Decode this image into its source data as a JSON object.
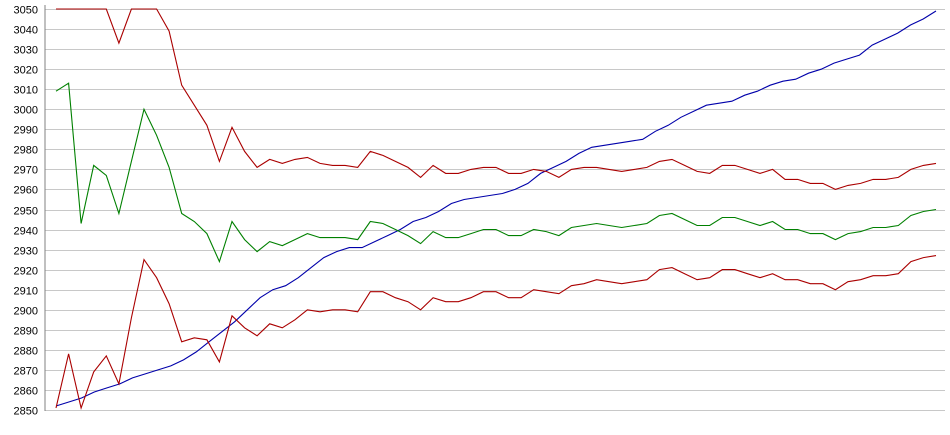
{
  "chart_data": {
    "type": "line",
    "title": "",
    "xlabel": "",
    "ylabel": "",
    "ylim": [
      2850,
      3050
    ],
    "y_ticks": [
      2850,
      2860,
      2870,
      2880,
      2890,
      2900,
      2910,
      2920,
      2930,
      2940,
      2950,
      2960,
      2970,
      2980,
      2990,
      3000,
      3010,
      3020,
      3030,
      3040,
      3050
    ],
    "grid": true,
    "legend": "none",
    "series": [
      {
        "color": "#0000aa",
        "values": [
          2852,
          2854,
          2856,
          2859,
          2861,
          2863,
          2866,
          2868,
          2870,
          2872,
          2875,
          2879,
          2884,
          2889,
          2894,
          2900,
          2906,
          2910,
          2912,
          2916,
          2921,
          2926,
          2929,
          2931,
          2931,
          2934,
          2937,
          2940,
          2944,
          2946,
          2949,
          2953,
          2955,
          2956,
          2957,
          2958,
          2960,
          2963,
          2968,
          2971,
          2974,
          2978,
          2981,
          2982,
          2983,
          2984,
          2985,
          2989,
          2992,
          2996,
          2999,
          3002,
          3003,
          3004,
          3007,
          3009,
          3012,
          3014,
          3015,
          3018,
          3020,
          3023,
          3025,
          3027,
          3032,
          3035,
          3038,
          3042,
          3045,
          3049
        ]
      },
      {
        "color": "#aa0000",
        "values": [
          3050,
          3050,
          3050,
          3050,
          3050,
          3033,
          3050,
          3050,
          3050,
          3039,
          3012,
          3002,
          2992,
          2974,
          2991,
          2979,
          2971,
          2975,
          2973,
          2975,
          2976,
          2973,
          2972,
          2972,
          2971,
          2979,
          2977,
          2974,
          2971,
          2966,
          2972,
          2968,
          2968,
          2970,
          2971,
          2971,
          2968,
          2968,
          2970,
          2969,
          2966,
          2970,
          2971,
          2971,
          2970,
          2969,
          2970,
          2971,
          2974,
          2975,
          2972,
          2969,
          2968,
          2972,
          2972,
          2970,
          2968,
          2970,
          2965,
          2965,
          2963,
          2963,
          2960,
          2962,
          2963,
          2965,
          2965,
          2966,
          2970,
          2972,
          2973
        ]
      },
      {
        "color": "#008000",
        "values": [
          3009,
          3013,
          2943,
          2972,
          2967,
          2948,
          2974,
          3000,
          2987,
          2971,
          2948,
          2944,
          2938,
          2924,
          2944,
          2935,
          2929,
          2934,
          2932,
          2935,
          2938,
          2936,
          2936,
          2936,
          2935,
          2944,
          2943,
          2940,
          2937,
          2933,
          2939,
          2936,
          2936,
          2938,
          2940,
          2940,
          2937,
          2937,
          2940,
          2939,
          2937,
          2941,
          2942,
          2943,
          2942,
          2941,
          2942,
          2943,
          2947,
          2948,
          2945,
          2942,
          2942,
          2946,
          2946,
          2944,
          2942,
          2944,
          2940,
          2940,
          2938,
          2938,
          2935,
          2938,
          2939,
          2941,
          2941,
          2942,
          2947,
          2949,
          2950
        ]
      },
      {
        "color": "#aa0000",
        "values": [
          2851,
          2878,
          2851,
          2869,
          2877,
          2863,
          2896,
          2925,
          2916,
          2903,
          2884,
          2886,
          2885,
          2874,
          2897,
          2891,
          2887,
          2893,
          2891,
          2895,
          2900,
          2899,
          2900,
          2900,
          2899,
          2909,
          2909,
          2906,
          2904,
          2900,
          2906,
          2904,
          2904,
          2906,
          2909,
          2909,
          2906,
          2906,
          2910,
          2909,
          2908,
          2912,
          2913,
          2915,
          2914,
          2913,
          2914,
          2915,
          2920,
          2921,
          2918,
          2915,
          2916,
          2920,
          2920,
          2918,
          2916,
          2918,
          2915,
          2915,
          2913,
          2913,
          2910,
          2914,
          2915,
          2917,
          2917,
          2918,
          2924,
          2926,
          2927
        ]
      }
    ]
  }
}
